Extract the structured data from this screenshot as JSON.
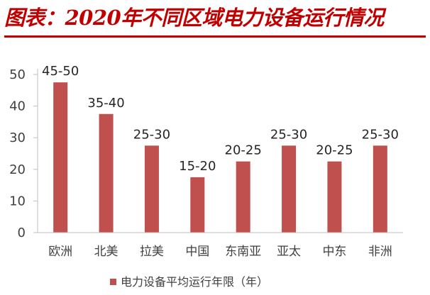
{
  "title": "图表：2020年不同区域电力设备运行情况",
  "colors": {
    "title": "#c00000",
    "bar": "#c0504d",
    "axis": "#bfbfbf",
    "text": "#404040"
  },
  "chart_data": {
    "type": "bar",
    "categories": [
      "欧洲",
      "北美",
      "拉美",
      "中国",
      "东南亚",
      "亚太",
      "中东",
      "非洲"
    ],
    "series": [
      {
        "name": "电力设备平均运行年限（年）",
        "values": [
          47.5,
          37.5,
          27.5,
          17.5,
          22.5,
          27.5,
          22.5,
          27.5
        ],
        "labels": [
          "45-50",
          "35-40",
          "25-30",
          "15-20",
          "20-25",
          "25-30",
          "20-25",
          "25-30"
        ]
      }
    ],
    "ylim": [
      0,
      50
    ],
    "yticks": [
      0,
      10,
      20,
      30,
      40,
      50
    ],
    "grid": false,
    "legend_position": "bottom"
  }
}
